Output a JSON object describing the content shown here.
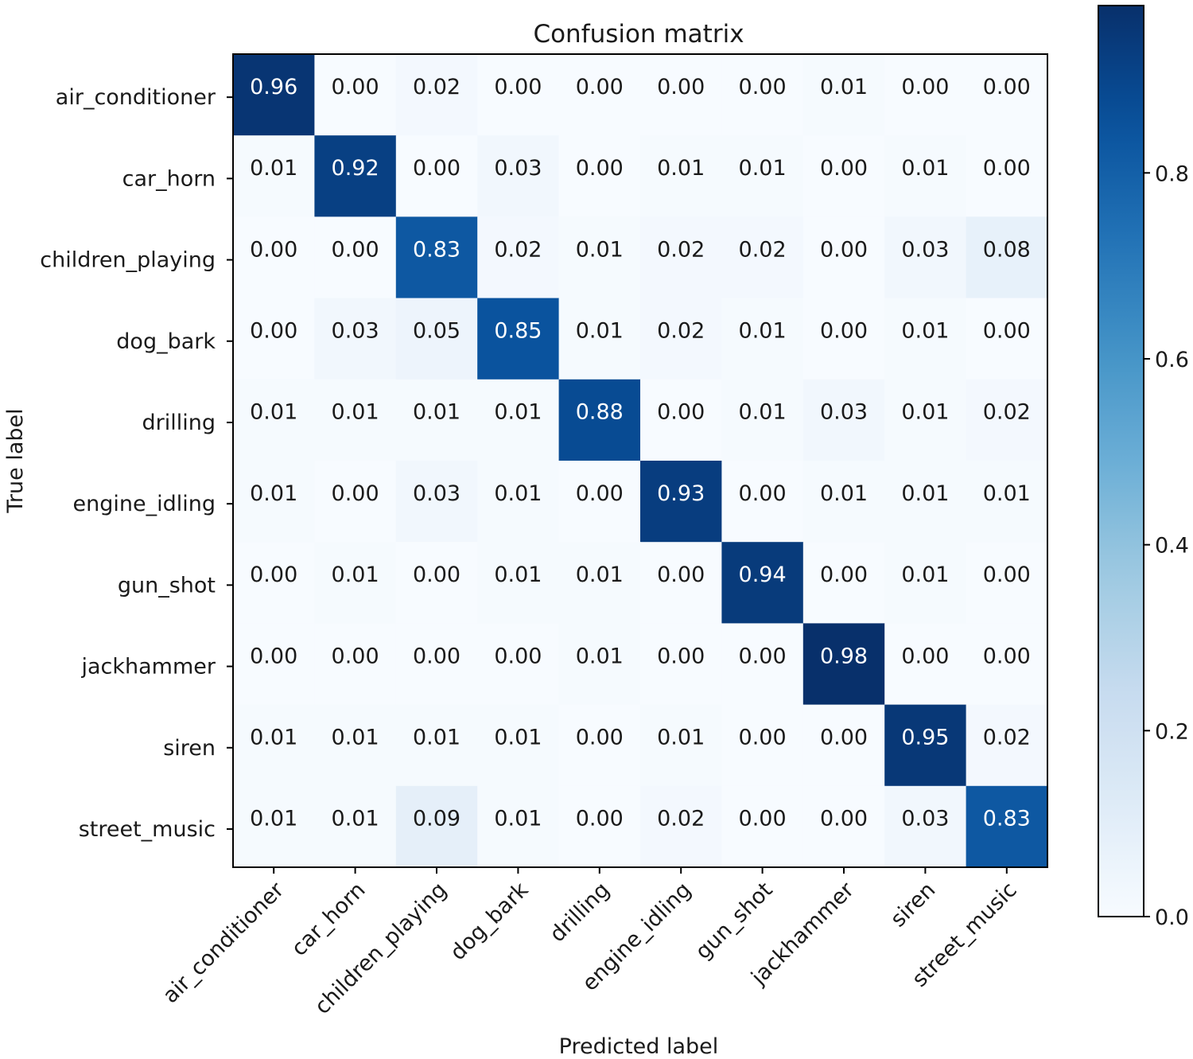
{
  "chart_data": {
    "type": "heatmap",
    "title": "Confusion matrix",
    "xlabel": "Predicted label",
    "ylabel": "True label",
    "row_labels": [
      "air_conditioner",
      "car_horn",
      "children_playing",
      "dog_bark",
      "drilling",
      "engine_idling",
      "gun_shot",
      "jackhammer",
      "siren",
      "street_music"
    ],
    "col_labels": [
      "air_conditioner",
      "car_horn",
      "children_playing",
      "dog_bark",
      "drilling",
      "engine_idling",
      "gun_shot",
      "jackhammer",
      "siren",
      "street_music"
    ],
    "values": [
      [
        0.96,
        0.0,
        0.02,
        0.0,
        0.0,
        0.0,
        0.0,
        0.01,
        0.0,
        0.0
      ],
      [
        0.01,
        0.92,
        0.0,
        0.03,
        0.0,
        0.01,
        0.01,
        0.0,
        0.01,
        0.0
      ],
      [
        0.0,
        0.0,
        0.83,
        0.02,
        0.01,
        0.02,
        0.02,
        0.0,
        0.03,
        0.08
      ],
      [
        0.0,
        0.03,
        0.05,
        0.85,
        0.01,
        0.02,
        0.01,
        0.0,
        0.01,
        0.0
      ],
      [
        0.01,
        0.01,
        0.01,
        0.01,
        0.88,
        0.0,
        0.01,
        0.03,
        0.01,
        0.02
      ],
      [
        0.01,
        0.0,
        0.03,
        0.01,
        0.0,
        0.93,
        0.0,
        0.01,
        0.01,
        0.01
      ],
      [
        0.0,
        0.01,
        0.0,
        0.01,
        0.01,
        0.0,
        0.94,
        0.0,
        0.01,
        0.0
      ],
      [
        0.0,
        0.0,
        0.0,
        0.0,
        0.01,
        0.0,
        0.0,
        0.98,
        0.0,
        0.0
      ],
      [
        0.01,
        0.01,
        0.01,
        0.01,
        0.0,
        0.01,
        0.0,
        0.0,
        0.95,
        0.02
      ],
      [
        0.01,
        0.01,
        0.09,
        0.01,
        0.0,
        0.02,
        0.0,
        0.0,
        0.03,
        0.83
      ]
    ],
    "value_format": "0.00",
    "colormap": "Blues",
    "colorbar": {
      "range": [
        0.0,
        0.98
      ],
      "ticks": [
        0.0,
        0.2,
        0.4,
        0.6,
        0.8
      ],
      "tick_labels": [
        "0.0",
        "0.2",
        "0.4",
        "0.6",
        "0.8"
      ]
    },
    "grid": false
  }
}
